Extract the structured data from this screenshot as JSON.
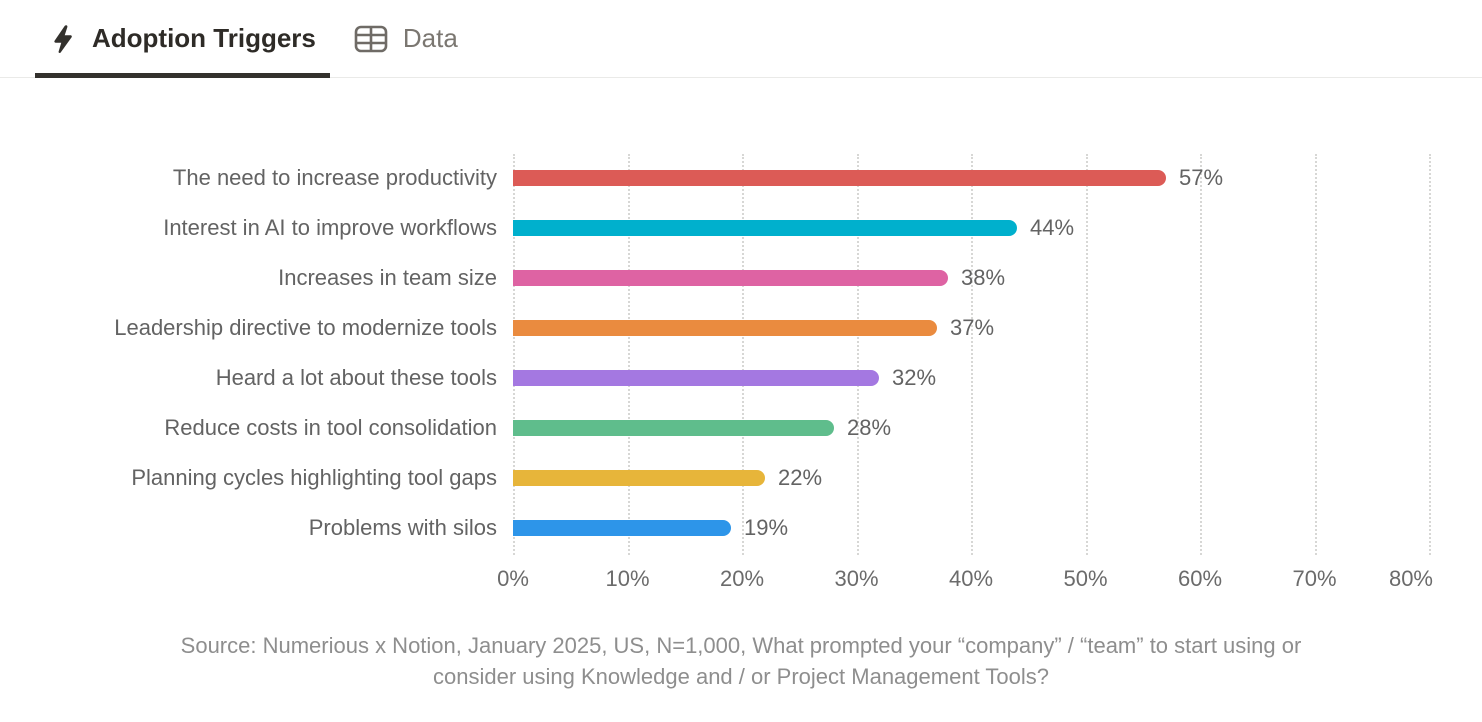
{
  "tabs": [
    {
      "label": "Adoption Triggers",
      "icon": "lightning-icon",
      "active": true
    },
    {
      "label": "Data",
      "icon": "table-icon",
      "active": false
    }
  ],
  "chart_data": {
    "type": "bar",
    "orientation": "horizontal",
    "title": "Adoption Triggers",
    "categories": [
      "The need to increase productivity",
      "Interest in AI to improve workflows",
      "Increases in team size",
      "Leadership directive to modernize tools",
      "Heard a lot about these tools",
      "Reduce costs in tool consolidation",
      "Planning cycles highlighting tool gaps",
      "Problems with silos"
    ],
    "values": [
      57,
      44,
      38,
      37,
      32,
      28,
      22,
      19
    ],
    "value_labels": [
      "57%",
      "44%",
      "38%",
      "37%",
      "32%",
      "28%",
      "22%",
      "19%"
    ],
    "bar_colors": [
      "#dc5b56",
      "#00b0cd",
      "#de63a3",
      "#ea8b3f",
      "#a478e1",
      "#5fbd8c",
      "#e7b53a",
      "#2d95e9"
    ],
    "xlim": [
      0,
      80
    ],
    "x_ticks": [
      "0%",
      "10%",
      "20%",
      "30%",
      "40%",
      "50%",
      "60%",
      "70%",
      "80%"
    ],
    "grid": "dotted-vertical",
    "legend": "none"
  },
  "source": {
    "lines": [
      "Source: Numerious x Notion, January 2025, US, N=1,000, What prompted your “company” / “team” to start using or",
      "consider using Knowledge and / or Project Management Tools?"
    ]
  },
  "colors": {
    "active_tab_text": "#2e2b27",
    "inactive_tab_text": "#7b7771",
    "tab_underline": "#33312d",
    "label_text": "#636363",
    "source_text": "#8e8e8e",
    "gridline": "#d7d7d5"
  }
}
